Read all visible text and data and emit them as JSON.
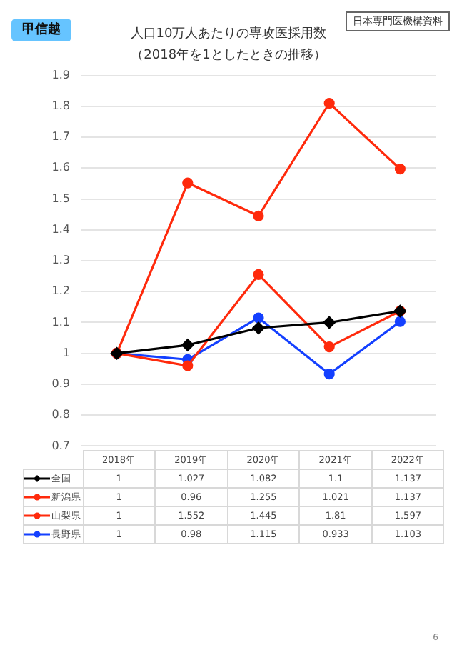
{
  "chart_data": {
    "type": "line",
    "title": "人口10万人あたりの専攻医採用数",
    "subtitle": "（2018年を1としたときの推移）",
    "annotations": [
      "甲信越",
      "日本専門医機構資料",
      "6"
    ],
    "categories": [
      "2018年",
      "2019年",
      "2020年",
      "2021年",
      "2022年"
    ],
    "series": [
      {
        "name": "全国",
        "color": "#000000",
        "marker": "diamond",
        "values": [
          1,
          1.027,
          1.082,
          1.1,
          1.137
        ]
      },
      {
        "name": "新潟県",
        "color": "#ff2a0c",
        "marker": "circle",
        "values": [
          1,
          0.96,
          1.255,
          1.021,
          1.137
        ]
      },
      {
        "name": "山梨県",
        "color": "#ff2a0c",
        "marker": "circle",
        "values": [
          1,
          1.552,
          1.445,
          1.81,
          1.597
        ]
      },
      {
        "name": "長野県",
        "color": "#1440ff",
        "marker": "circle",
        "values": [
          1,
          0.98,
          1.115,
          0.933,
          1.103
        ]
      }
    ],
    "ylim": [
      0.7,
      1.9
    ],
    "yticks": [
      0.7,
      0.8,
      0.9,
      1,
      1.1,
      1.2,
      1.3,
      1.4,
      1.5,
      1.6,
      1.7,
      1.8,
      1.9
    ],
    "grid": "y",
    "legend": "bottom",
    "data_labels": true,
    "tick_labels": "y",
    "line_style": "solid"
  }
}
